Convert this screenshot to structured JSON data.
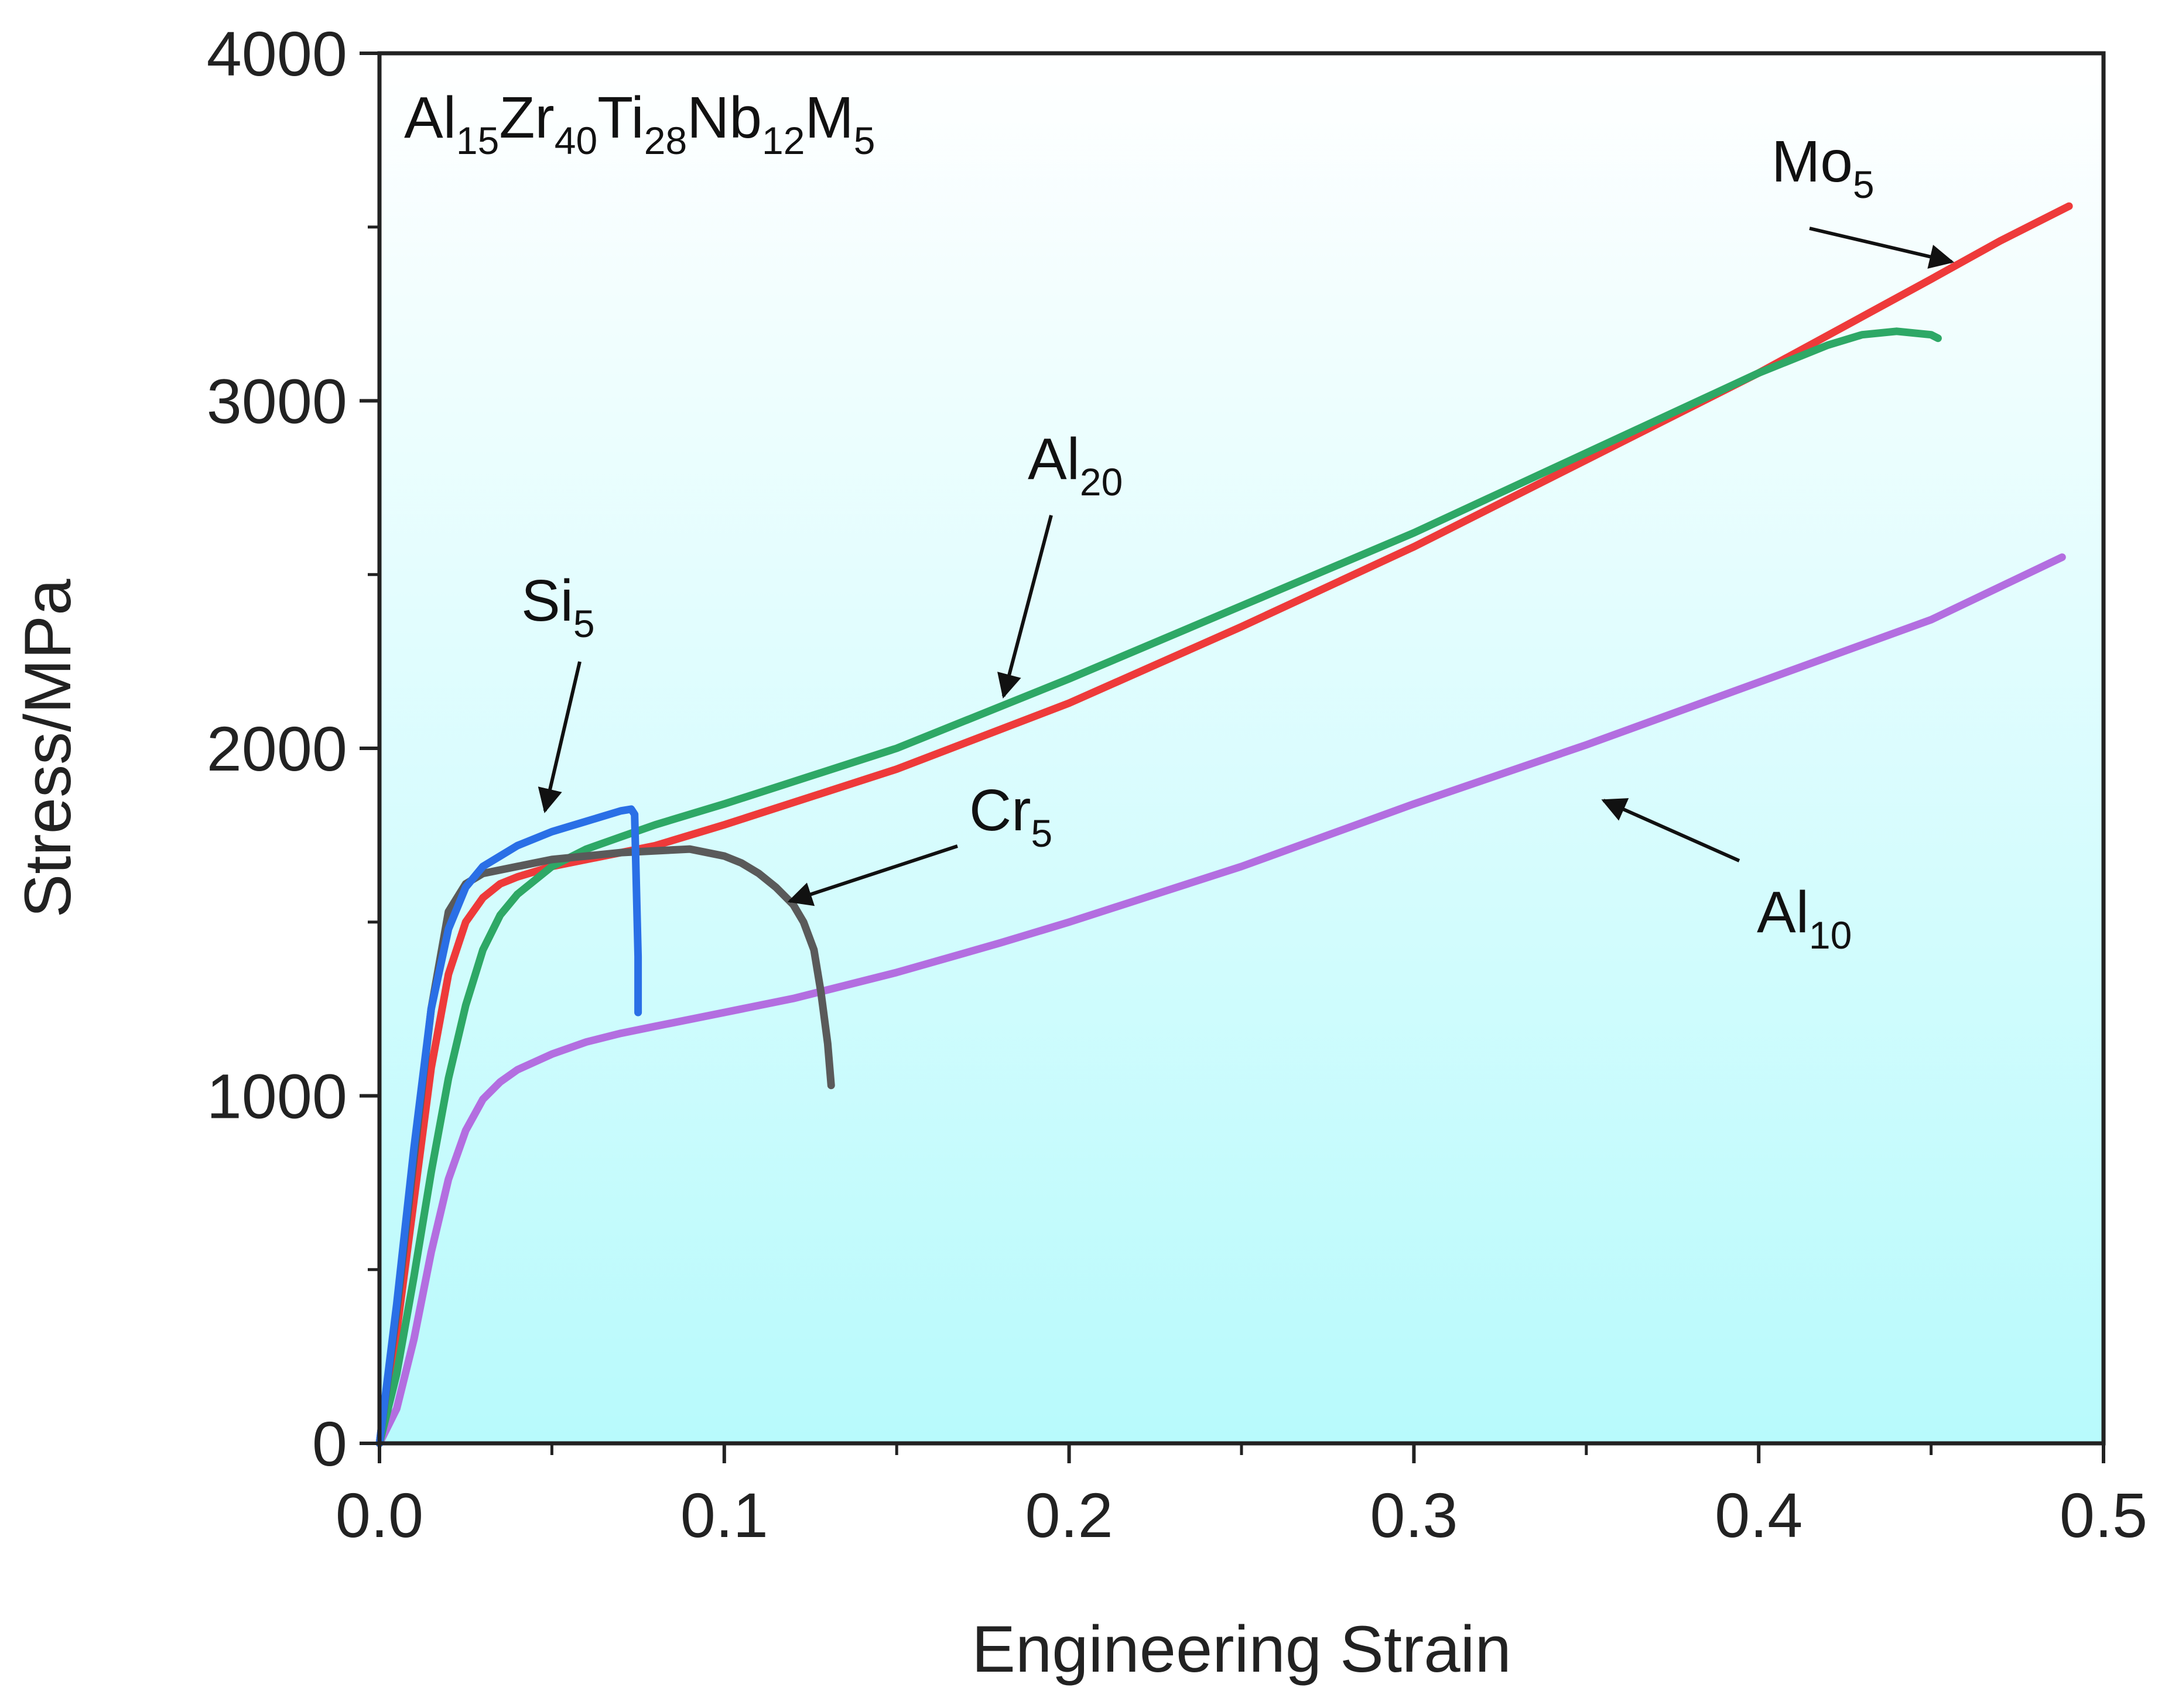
{
  "chart_data": {
    "type": "line",
    "title": "",
    "composition_label": [
      {
        "text": "Al",
        "sub": "15"
      },
      {
        "text": "Zr",
        "sub": "40"
      },
      {
        "text": "Ti",
        "sub": "28"
      },
      {
        "text": "Nb",
        "sub": "12"
      },
      {
        "text": "M",
        "sub": "5"
      }
    ],
    "xlabel": "Engineering Strain",
    "ylabel": "Stress/MPa",
    "xlim": [
      0,
      0.5
    ],
    "ylim": [
      0,
      4000
    ],
    "xticks": [
      0.0,
      0.1,
      0.2,
      0.3,
      0.4,
      0.5
    ],
    "xtick_labels": [
      "0.0",
      "0.1",
      "0.2",
      "0.3",
      "0.4",
      "0.5"
    ],
    "yticks": [
      0,
      1000,
      2000,
      3000,
      4000
    ],
    "ytick_labels": [
      "0",
      "1000",
      "2000",
      "3000",
      "4000"
    ],
    "grid": false,
    "background": "#b8fafc",
    "series": [
      {
        "name": "Al10",
        "label": "Al",
        "label_sub": "10",
        "color": "#b36ee0",
        "x": [
          0,
          0.005,
          0.01,
          0.015,
          0.02,
          0.025,
          0.03,
          0.035,
          0.04,
          0.05,
          0.06,
          0.07,
          0.08,
          0.1,
          0.12,
          0.15,
          0.18,
          0.2,
          0.25,
          0.3,
          0.35,
          0.4,
          0.45,
          0.488
        ],
        "y": [
          0,
          100,
          300,
          550,
          760,
          900,
          990,
          1040,
          1075,
          1120,
          1155,
          1180,
          1200,
          1240,
          1280,
          1355,
          1440,
          1500,
          1660,
          1840,
          2010,
          2190,
          2370,
          2550
        ]
      },
      {
        "name": "Mo5",
        "label": "Mo",
        "label_sub": "5",
        "color": "#ee3a3a",
        "x": [
          0,
          0.005,
          0.01,
          0.015,
          0.02,
          0.025,
          0.03,
          0.035,
          0.04,
          0.05,
          0.06,
          0.07,
          0.08,
          0.1,
          0.15,
          0.2,
          0.25,
          0.3,
          0.35,
          0.4,
          0.45,
          0.47,
          0.48,
          0.49
        ],
        "y": [
          0,
          320,
          700,
          1080,
          1350,
          1500,
          1570,
          1610,
          1630,
          1660,
          1680,
          1700,
          1720,
          1780,
          1940,
          2130,
          2350,
          2580,
          2830,
          3080,
          3350,
          3460,
          3510,
          3560
        ]
      },
      {
        "name": "Al20",
        "label": "Al",
        "label_sub": "20",
        "color": "#2ea866",
        "x": [
          0,
          0.005,
          0.01,
          0.015,
          0.02,
          0.025,
          0.03,
          0.035,
          0.04,
          0.05,
          0.06,
          0.07,
          0.08,
          0.1,
          0.15,
          0.2,
          0.25,
          0.3,
          0.35,
          0.4,
          0.42,
          0.43,
          0.44,
          0.45,
          0.452
        ],
        "y": [
          0,
          200,
          480,
          780,
          1050,
          1260,
          1420,
          1520,
          1580,
          1660,
          1710,
          1745,
          1780,
          1840,
          2000,
          2200,
          2410,
          2620,
          2850,
          3080,
          3160,
          3190,
          3200,
          3190,
          3180
        ]
      },
      {
        "name": "Cr5",
        "label": "Cr",
        "label_sub": "5",
        "color": "#5a5a5a",
        "x": [
          0,
          0.005,
          0.01,
          0.015,
          0.02,
          0.025,
          0.03,
          0.035,
          0.04,
          0.05,
          0.06,
          0.07,
          0.08,
          0.09,
          0.1,
          0.105,
          0.11,
          0.115,
          0.12,
          0.123,
          0.126,
          0.128,
          0.13,
          0.131
        ],
        "y": [
          0,
          380,
          820,
          1250,
          1530,
          1610,
          1640,
          1650,
          1660,
          1680,
          1690,
          1700,
          1705,
          1710,
          1690,
          1670,
          1640,
          1600,
          1550,
          1500,
          1420,
          1300,
          1150,
          1030
        ]
      },
      {
        "name": "Si5",
        "label": "Si",
        "label_sub": "5",
        "color": "#2a6fe6",
        "x": [
          0,
          0.005,
          0.01,
          0.015,
          0.02,
          0.025,
          0.03,
          0.035,
          0.04,
          0.05,
          0.06,
          0.07,
          0.073,
          0.074,
          0.0745,
          0.075,
          0.075
        ],
        "y": [
          0,
          400,
          850,
          1250,
          1480,
          1600,
          1660,
          1690,
          1720,
          1760,
          1790,
          1820,
          1825,
          1810,
          1600,
          1400,
          1240
        ]
      }
    ],
    "annotations": [
      {
        "series": "Mo5",
        "text": "Mo",
        "sub": "5",
        "target": [
          0.456,
          3400
        ]
      },
      {
        "series": "Al20",
        "text": "Al",
        "sub": "20",
        "target": [
          0.181,
          2150
        ]
      },
      {
        "series": "Si5",
        "text": "Si",
        "sub": "5",
        "target": [
          0.048,
          1820
        ]
      },
      {
        "series": "Cr5",
        "text": "Cr",
        "sub": "5",
        "target": [
          0.119,
          1560
        ]
      },
      {
        "series": "Al10",
        "text": "Al",
        "sub": "10",
        "target": [
          0.355,
          1850
        ]
      }
    ]
  }
}
